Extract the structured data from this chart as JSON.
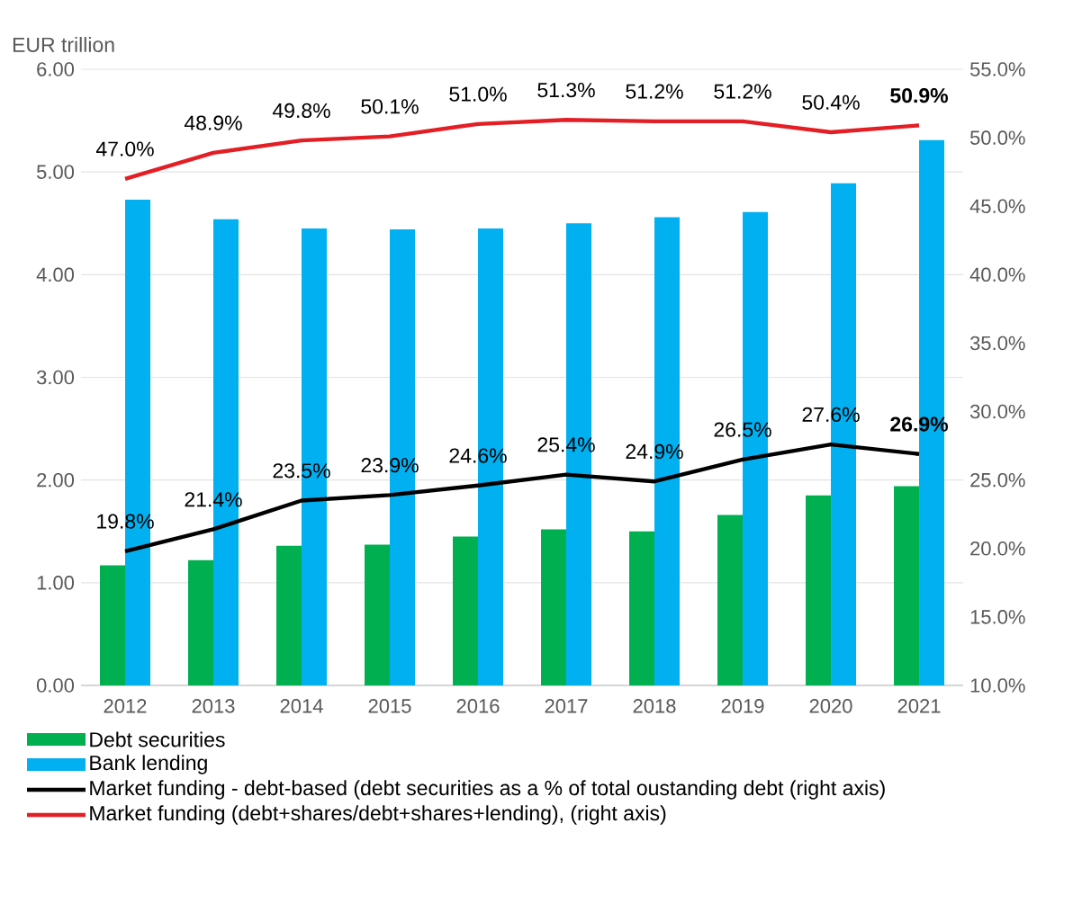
{
  "chart_data": {
    "type": "bar",
    "ylabel": "EUR trillion",
    "categories": [
      "2012",
      "2013",
      "2014",
      "2015",
      "2016",
      "2017",
      "2018",
      "2019",
      "2020",
      "2021"
    ],
    "series": [
      {
        "name": "Debt securities",
        "color": "#00b050",
        "values": [
          1.17,
          1.22,
          1.36,
          1.37,
          1.45,
          1.52,
          1.5,
          1.66,
          1.85,
          1.94
        ]
      },
      {
        "name": "Bank lending",
        "color": "#00b0f0",
        "values": [
          4.73,
          4.54,
          4.45,
          4.44,
          4.45,
          4.5,
          4.56,
          4.61,
          4.89,
          5.31
        ]
      },
      {
        "name": "Market funding - debt-based (debt securities as a % of total oustanding debt (right axis)",
        "type": "line",
        "axis": "y2",
        "color": "#000000",
        "values": [
          19.8,
          21.4,
          23.5,
          23.9,
          24.6,
          25.4,
          24.9,
          26.5,
          27.6,
          26.9
        ],
        "value_labels": [
          "19.8%",
          "21.4%",
          "23.5%",
          "23.9%",
          "24.6%",
          "25.4%",
          "24.9%",
          "26.5%",
          "27.6%",
          "**26.9%**"
        ]
      },
      {
        "name": "Market funding  (debt+shares/debt+shares+lending), (right axis)",
        "type": "line",
        "axis": "y2",
        "color": "#e31e24",
        "values": [
          47.0,
          48.9,
          49.8,
          50.1,
          51.0,
          51.3,
          51.2,
          51.2,
          50.4,
          50.9
        ],
        "value_labels": [
          "47.0%",
          "48.9%",
          "49.8%",
          "50.1%",
          "51.0%",
          "51.3%",
          "51.2%",
          "51.2%",
          "50.4%",
          "**50.9%**"
        ]
      }
    ],
    "ylim": [
      0,
      6
    ],
    "yticks": [
      {
        "value": 0,
        "label": "0.00"
      },
      {
        "value": 1,
        "label": "1.00"
      },
      {
        "value": 2,
        "label": "2.00"
      },
      {
        "value": 3,
        "label": "3.00"
      },
      {
        "value": 4,
        "label": "4.00"
      },
      {
        "value": 5,
        "label": "5.00"
      },
      {
        "value": 6,
        "label": "6.00"
      }
    ],
    "y2lim": [
      10,
      55
    ],
    "y2ticks": [
      {
        "value": 10,
        "label": "10.0%"
      },
      {
        "value": 15,
        "label": "15.0%"
      },
      {
        "value": 20,
        "label": "20.0%"
      },
      {
        "value": 25,
        "label": "25.0%"
      },
      {
        "value": 30,
        "label": "30.0%"
      },
      {
        "value": 35,
        "label": "35.0%"
      },
      {
        "value": 40,
        "label": "40.0%"
      },
      {
        "value": 45,
        "label": "45.0%"
      },
      {
        "value": 50,
        "label": "50.0%"
      },
      {
        "value": 55,
        "label": "55.0%"
      }
    ],
    "grid": "y",
    "legend": "bottom"
  }
}
